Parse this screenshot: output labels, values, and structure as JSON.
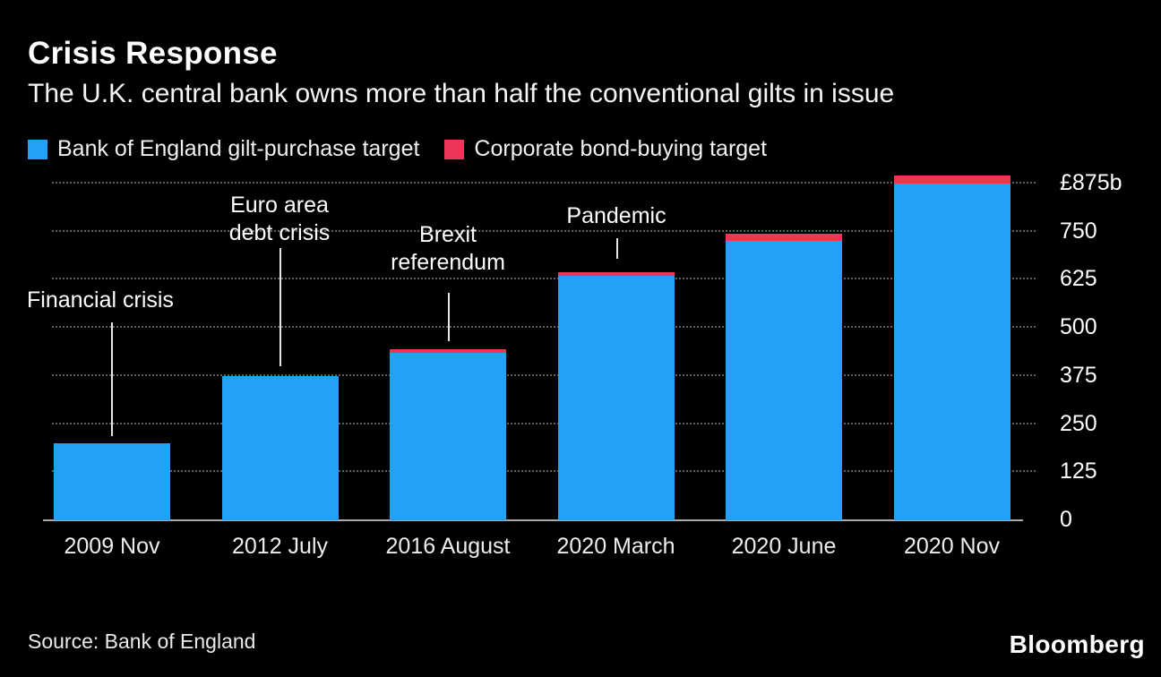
{
  "header": {
    "title": "Crisis Response",
    "subtitle": "The U.K. central bank owns more than half the conventional gilts in issue"
  },
  "legend": [
    {
      "label": "Bank of England gilt-purchase target",
      "color": "#23a1f7"
    },
    {
      "label": "Corporate bond-buying target",
      "color": "#f0355b"
    }
  ],
  "chart_data": {
    "type": "bar",
    "stacked": true,
    "title": "Crisis Response",
    "subtitle": "The U.K. central bank owns more than half the conventional gilts in issue",
    "categories": [
      "2009 Nov",
      "2012 July",
      "2016 August",
      "2020 March",
      "2020 June",
      "2020 Nov"
    ],
    "series": [
      {
        "name": "Bank of England gilt-purchase target",
        "color": "#23a1f7",
        "values": [
          200,
          375,
          435,
          635,
          725,
          875
        ]
      },
      {
        "name": "Corporate bond-buying target",
        "color": "#f0355b",
        "values": [
          0,
          0,
          10,
          10,
          20,
          20
        ]
      }
    ],
    "unit": "billion GBP",
    "ylim": [
      0,
      875
    ],
    "ytick_step": 125,
    "ytick_labels": [
      "0",
      "125",
      "250",
      "375",
      "500",
      "625",
      "750",
      "£875b"
    ],
    "grid": "horizontal dotted",
    "legend_position": "top",
    "annotations": [
      {
        "text": "Financial crisis",
        "align": "left",
        "label_x": 30,
        "label_y": 115,
        "line": {
          "x": 124,
          "y1": 155,
          "y2": 282
        }
      },
      {
        "text": "Euro area\ndebt crisis",
        "align": "center",
        "label_x": 312,
        "label_y": 9,
        "line": {
          "x": 312,
          "y1": 72,
          "y2": 204
        }
      },
      {
        "text": "Brexit\nreferendum",
        "align": "center",
        "label_x": 500,
        "label_y": 42,
        "line": {
          "x": 500,
          "y1": 122,
          "y2": 176
        }
      },
      {
        "text": "Pandemic",
        "align": "center",
        "label_x": 688,
        "label_y": 21,
        "line": {
          "x": 688,
          "y1": 61,
          "y2": 84
        }
      }
    ]
  },
  "footer": {
    "source": "Source: Bank of England",
    "brand": "Bloomberg"
  }
}
